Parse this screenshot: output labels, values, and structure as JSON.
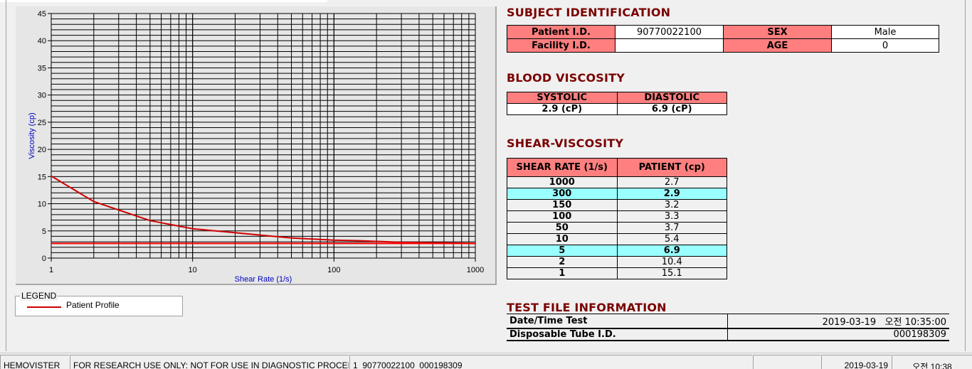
{
  "chart_data": {
    "type": "line",
    "xlabel": "Shear Rate (1/s)",
    "ylabel": "Viscosity (cp)",
    "xscale": "log",
    "xlim": [
      1,
      1000
    ],
    "ylim": [
      0,
      45
    ],
    "xticks": [
      "1",
      "10",
      "100",
      "1000"
    ],
    "yticks": [
      "0",
      "5",
      "10",
      "15",
      "20",
      "25",
      "30",
      "35",
      "40",
      "45"
    ],
    "grid": true,
    "series": [
      {
        "name": "Patient Profile",
        "color": "#d00000",
        "x": [
          1,
          2,
          5,
          10,
          50,
          100,
          150,
          300,
          1000
        ],
        "y": [
          15.1,
          10.4,
          6.9,
          5.4,
          3.7,
          3.3,
          3.2,
          2.9,
          2.7
        ]
      },
      {
        "color": "#ff0000",
        "x": [
          1,
          1000
        ],
        "y": [
          2.7,
          2.7
        ]
      }
    ]
  },
  "legend": {
    "title": "LEGEND",
    "label": "Patient Profile"
  },
  "subject": {
    "title": "SUBJECT IDENTIFICATION",
    "patient_id_label": "Patient I.D.",
    "patient_id": "90770022100",
    "sex_label": "SEX",
    "sex": "Male",
    "facility_label": "Facility I.D.",
    "facility": "",
    "age_label": "AGE",
    "age": "0"
  },
  "blood": {
    "title": "BLOOD VISCOSITY",
    "systolic_label": "SYSTOLIC",
    "diastolic_label": "DIASTOLIC",
    "systolic": "2.9 (cP)",
    "diastolic": "6.9 (cP)"
  },
  "shear": {
    "title": "SHEAR-VISCOSITY",
    "col1": "SHEAR RATE (1/s)",
    "col2": "PATIENT (cp)",
    "highlight_color": "#99ffff",
    "rows": [
      {
        "rate": "1000",
        "value": "2.7"
      },
      {
        "rate": "300",
        "value": "2.9",
        "highlight": true
      },
      {
        "rate": "150",
        "value": "3.2"
      },
      {
        "rate": "100",
        "value": "3.3"
      },
      {
        "rate": "50",
        "value": "3.7"
      },
      {
        "rate": "10",
        "value": "5.4"
      },
      {
        "rate": "5",
        "value": "6.9",
        "highlight": true
      },
      {
        "rate": "2",
        "value": "10.4"
      },
      {
        "rate": "1",
        "value": "15.1"
      }
    ]
  },
  "testfile": {
    "title": "TEST FILE INFORMATION",
    "datetime_label": "Date/Time Test",
    "datetime": "2019-03-19   오전 10:35:00",
    "tube_label": "Disposable Tube I.D.",
    "tube": "000198309"
  },
  "status": {
    "app": "HEMOVISTER",
    "notice": "FOR RESEARCH USE ONLY: NOT FOR USE IN DIAGNOSTIC PROCEDURES",
    "record": "1  90770022100  000198309",
    "blank": "",
    "date": "2019-03-19",
    "time": "오전 10:38"
  }
}
